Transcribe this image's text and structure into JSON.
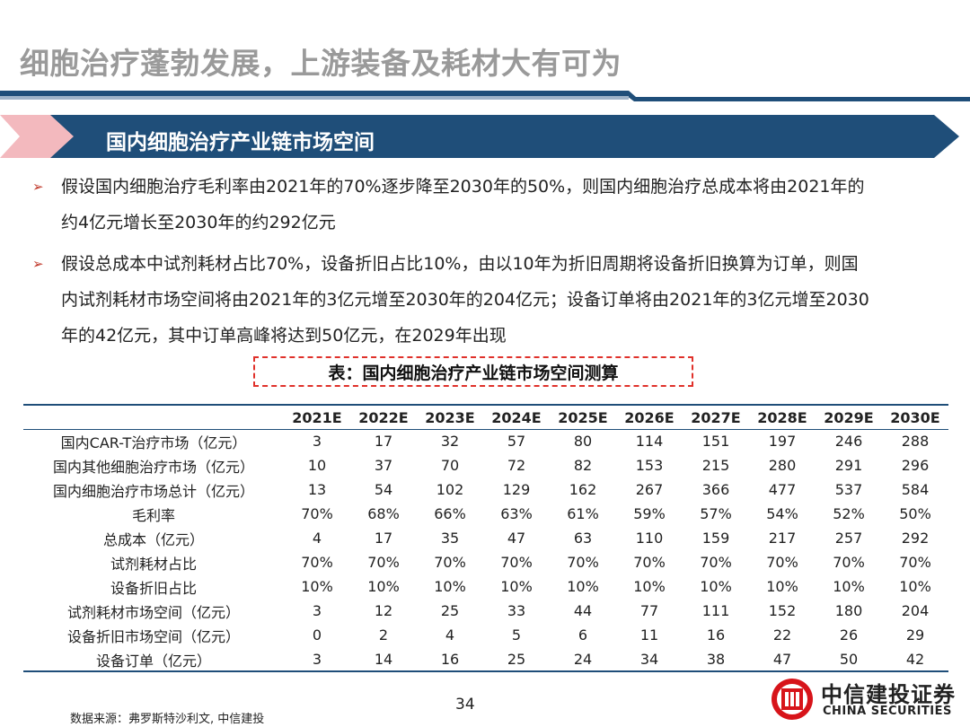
{
  "slide": {
    "title": "细胞治疗蓬勃发展，上游装备及耗材大有可为",
    "section": "国内细胞治疗产业链市场空间",
    "bullets": [
      [
        "假设国内细胞治疗毛利率由2021年的70%逐步降至2030年的50%，则国内细胞治疗总成本将由2021年的",
        "约4亿元增长至2030年的约292亿元"
      ],
      [
        "假设总成本中试剂耗材占比70%，设备折旧占比10%，由以10年为折旧周期将设备折旧换算为订单，则国",
        "内试剂耗材市场空间将由2021年的3亿元增至2030年的204亿元；设备订单将由2021年的3亿元增至2030",
        "年的42亿元，其中订单高峰将达到50亿元，在2029年出现"
      ]
    ],
    "table_caption": "表：国内细胞治疗产业链市场空间测算",
    "source": "数据来源：弗罗斯特沙利文, 中信建投",
    "page_number": "34",
    "logo_cn": "中信建投证券",
    "logo_en": "CHINA SECURITIES"
  },
  "colors": {
    "navy": "#1f4e79",
    "red": "#e0312a",
    "title_gray": "#9a9a9a"
  },
  "table": {
    "columns": [
      "2021E",
      "2022E",
      "2023E",
      "2024E",
      "2025E",
      "2026E",
      "2027E",
      "2028E",
      "2029E",
      "2030E"
    ],
    "rows": [
      {
        "label": "国内CAR-T治疗市场（亿元）",
        "values": [
          "3",
          "17",
          "32",
          "57",
          "80",
          "114",
          "151",
          "197",
          "246",
          "288"
        ]
      },
      {
        "label": "国内其他细胞治疗市场（亿元）",
        "values": [
          "10",
          "37",
          "70",
          "72",
          "82",
          "153",
          "215",
          "280",
          "291",
          "296"
        ]
      },
      {
        "label": "国内细胞治疗市场总计（亿元）",
        "values": [
          "13",
          "54",
          "102",
          "129",
          "162",
          "267",
          "366",
          "477",
          "537",
          "584"
        ]
      },
      {
        "label": "毛利率",
        "values": [
          "70%",
          "68%",
          "66%",
          "63%",
          "61%",
          "59%",
          "57%",
          "54%",
          "52%",
          "50%"
        ]
      },
      {
        "label": "总成本（亿元）",
        "values": [
          "4",
          "17",
          "35",
          "47",
          "63",
          "110",
          "159",
          "217",
          "257",
          "292"
        ]
      },
      {
        "label": "试剂耗材占比",
        "values": [
          "70%",
          "70%",
          "70%",
          "70%",
          "70%",
          "70%",
          "70%",
          "70%",
          "70%",
          "70%"
        ]
      },
      {
        "label": "设备折旧占比",
        "values": [
          "10%",
          "10%",
          "10%",
          "10%",
          "10%",
          "10%",
          "10%",
          "10%",
          "10%",
          "10%"
        ]
      },
      {
        "label": "试剂耗材市场空间（亿元）",
        "values": [
          "3",
          "12",
          "25",
          "33",
          "44",
          "77",
          "111",
          "152",
          "180",
          "204"
        ]
      },
      {
        "label": "设备折旧市场空间（亿元）",
        "values": [
          "0",
          "2",
          "4",
          "5",
          "6",
          "11",
          "16",
          "22",
          "26",
          "29"
        ]
      },
      {
        "label": "设备订单（亿元）",
        "values": [
          "3",
          "14",
          "16",
          "25",
          "24",
          "34",
          "38",
          "47",
          "50",
          "42"
        ]
      }
    ]
  }
}
